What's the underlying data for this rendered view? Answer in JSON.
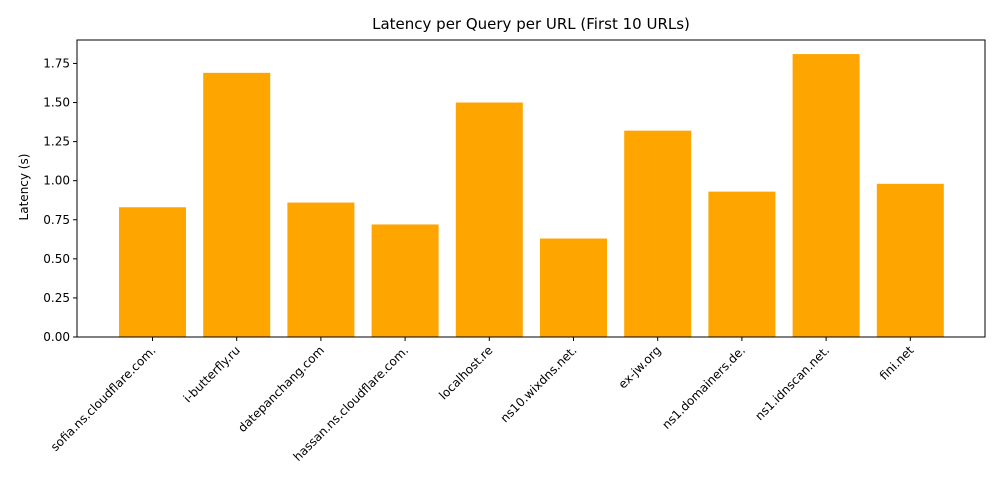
{
  "chart_data": {
    "type": "bar",
    "title": "Latency per Query per URL (First 10 URLs)",
    "xlabel": "",
    "ylabel": "Latency (s)",
    "categories": [
      "sofia.ns.cloudflare.com.",
      "i-butterfly.ru",
      "datepanchang.com",
      "hassan.ns.cloudflare.com.",
      "localhost.re",
      "ns10.wixdns.net.",
      "ex-jw.org",
      "ns1.domainers.de.",
      "ns1.idnscan.net.",
      "fini.net"
    ],
    "values": [
      0.83,
      1.69,
      0.86,
      0.72,
      1.5,
      0.63,
      1.32,
      0.93,
      1.81,
      0.98
    ],
    "ylim": [
      0,
      1.9
    ],
    "yticks": [
      0.0,
      0.25,
      0.5,
      0.75,
      1.0,
      1.25,
      1.5,
      1.75
    ],
    "ytick_labels": [
      "0.00",
      "0.25",
      "0.50",
      "0.75",
      "1.00",
      "1.25",
      "1.50",
      "1.75"
    ],
    "bar_color": "#ffa500",
    "grid": false,
    "legend": "none"
  }
}
